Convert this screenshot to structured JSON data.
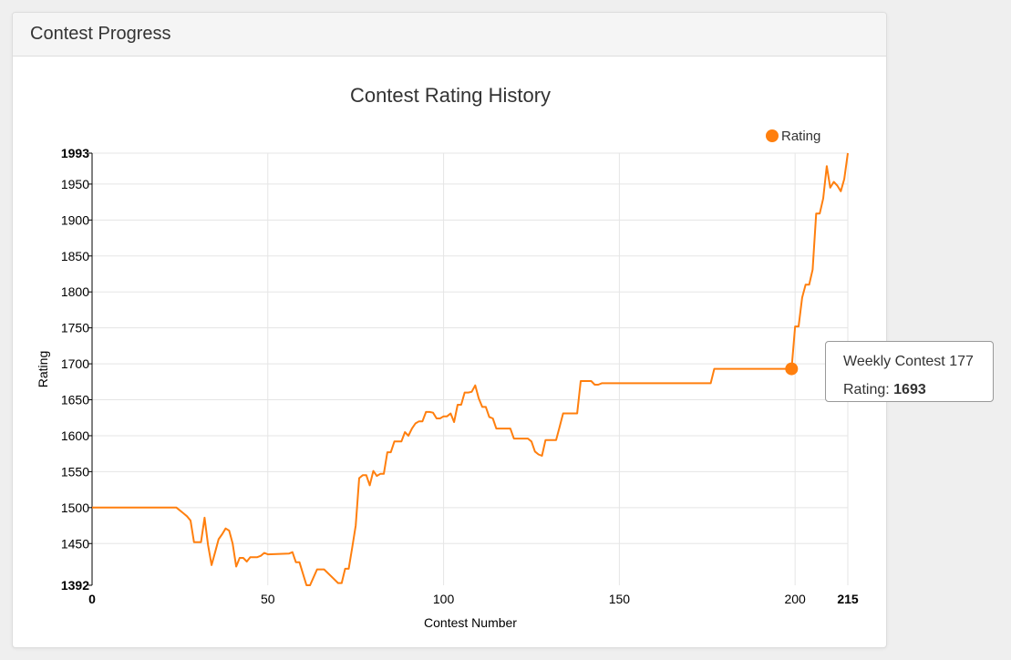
{
  "panel": {
    "title": "Contest Progress"
  },
  "tooltip": {
    "title": "Weekly Contest 177",
    "value_label": "Rating:",
    "value": "1693"
  },
  "colors": {
    "series": "#ff7f0e",
    "grid": "#e5e5e5",
    "axis": "#000000",
    "text": "#333333"
  },
  "chart_data": {
    "type": "line",
    "title": "Contest Rating History",
    "xlabel": "Contest Number",
    "ylabel": "Rating",
    "xlim": [
      0,
      215
    ],
    "ylim": [
      1392,
      1993
    ],
    "x_ticks": [
      {
        "value": 0,
        "label": "0",
        "bold": true
      },
      {
        "value": 50,
        "label": "50",
        "bold": false
      },
      {
        "value": 100,
        "label": "100",
        "bold": false
      },
      {
        "value": 150,
        "label": "150",
        "bold": false
      },
      {
        "value": 200,
        "label": "200",
        "bold": false
      },
      {
        "value": 215,
        "label": "215",
        "bold": true
      }
    ],
    "y_ticks": [
      {
        "value": 1392,
        "label": "1392",
        "bold": true
      },
      {
        "value": 1450,
        "label": "1450",
        "bold": false
      },
      {
        "value": 1500,
        "label": "1500",
        "bold": false
      },
      {
        "value": 1550,
        "label": "1550",
        "bold": false
      },
      {
        "value": 1600,
        "label": "1600",
        "bold": false
      },
      {
        "value": 1650,
        "label": "1650",
        "bold": false
      },
      {
        "value": 1700,
        "label": "1700",
        "bold": false
      },
      {
        "value": 1750,
        "label": "1750",
        "bold": false
      },
      {
        "value": 1800,
        "label": "1800",
        "bold": false
      },
      {
        "value": 1850,
        "label": "1850",
        "bold": false
      },
      {
        "value": 1900,
        "label": "1900",
        "bold": false
      },
      {
        "value": 1950,
        "label": "1950",
        "bold": false
      },
      {
        "value": 1993,
        "label": "1993",
        "bold": true
      }
    ],
    "grid": true,
    "legend_position": "top-right",
    "series": [
      {
        "name": "Rating",
        "color": "#ff7f0e",
        "x": [
          0,
          24,
          26,
          27,
          28,
          29,
          30,
          31,
          32,
          33,
          34,
          35,
          36,
          37,
          38,
          39,
          40,
          41,
          42,
          43,
          44,
          45,
          47,
          48,
          49,
          50,
          56,
          57,
          58,
          59,
          61,
          62,
          64,
          65,
          66,
          70,
          71,
          72,
          73,
          74,
          75,
          76,
          77,
          78,
          79,
          80,
          81,
          82,
          83,
          84,
          85,
          86,
          87,
          88,
          89,
          90,
          91,
          92,
          93,
          94,
          95,
          96,
          97,
          98,
          99,
          100,
          101,
          102,
          103,
          104,
          105,
          106,
          107,
          108,
          109,
          110,
          111,
          112,
          113,
          114,
          115,
          116,
          117,
          118,
          119,
          120,
          121,
          122,
          123,
          124,
          125,
          126,
          127,
          128,
          129,
          130,
          131,
          132,
          133,
          134,
          135,
          136,
          137,
          138,
          139,
          140,
          141,
          142,
          143,
          144,
          145,
          146,
          147,
          148,
          149,
          150,
          151,
          152,
          153,
          154,
          155,
          156,
          157,
          158,
          159,
          160,
          161,
          162,
          163,
          164,
          165,
          166,
          167,
          168,
          169,
          170,
          171,
          172,
          173,
          174,
          175,
          176,
          177,
          199,
          200,
          201,
          202,
          203,
          204,
          205,
          206,
          207,
          208,
          209,
          210,
          211,
          212,
          213,
          214,
          215
        ],
        "values": [
          1500,
          1500,
          1492,
          1488,
          1482,
          1452,
          1452,
          1452,
          1486,
          1448,
          1420,
          1438,
          1456,
          1463,
          1471,
          1468,
          1450,
          1418,
          1430,
          1430,
          1425,
          1431,
          1431,
          1433,
          1437,
          1435,
          1436,
          1438,
          1424,
          1424,
          1392,
          1392,
          1414,
          1414,
          1414,
          1395,
          1395,
          1415,
          1415,
          1444,
          1475,
          1541,
          1545,
          1545,
          1531,
          1551,
          1544,
          1547,
          1547,
          1577,
          1577,
          1592,
          1592,
          1592,
          1605,
          1600,
          1610,
          1617,
          1620,
          1620,
          1633,
          1633,
          1632,
          1624,
          1624,
          1627,
          1627,
          1631,
          1619,
          1643,
          1643,
          1660,
          1660,
          1661,
          1670,
          1652,
          1640,
          1640,
          1626,
          1624,
          1610,
          1610,
          1610,
          1610,
          1610,
          1596,
          1596,
          1596,
          1596,
          1596,
          1592,
          1578,
          1574,
          1572,
          1594,
          1594,
          1594,
          1594,
          1612,
          1631,
          1631,
          1631,
          1631,
          1631,
          1676,
          1676,
          1676,
          1676,
          1671,
          1671,
          1673,
          1673,
          1673,
          1673,
          1673,
          1673,
          1673,
          1673,
          1673,
          1673,
          1673,
          1673,
          1673,
          1673,
          1673,
          1673,
          1673,
          1673,
          1673,
          1673,
          1673,
          1673,
          1673,
          1673,
          1673,
          1673,
          1673,
          1673,
          1673,
          1673,
          1673,
          1673,
          1693,
          1693,
          1752,
          1752,
          1792,
          1810,
          1810,
          1831,
          1909,
          1909,
          1930,
          1975,
          1945,
          1953,
          1948,
          1940,
          1957,
          1993
        ]
      }
    ],
    "highlight": {
      "x": 199,
      "y": 1693
    }
  }
}
